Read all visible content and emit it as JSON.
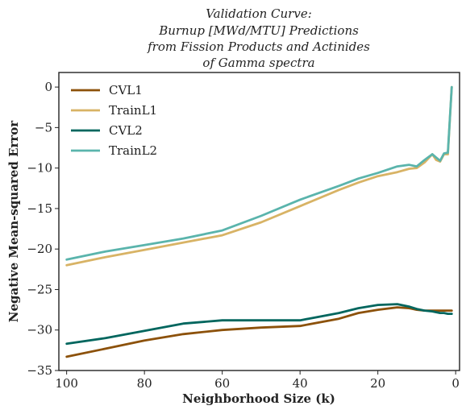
{
  "chart_data": {
    "type": "line",
    "title_lines": [
      "Validation Curve:",
      "Burnup [MWd/MTU] Predictions",
      "from Fission Products and Actinides",
      "of Gamma spectra"
    ],
    "xlabel": "Neighborhood Size (k)",
    "ylabel": "Negative Mean-squared Error",
    "xlim": [
      102,
      -1
    ],
    "ylim": [
      -35,
      1.8
    ],
    "x_inverted": true,
    "xticks": [
      100,
      80,
      60,
      40,
      20,
      0
    ],
    "yticks": [
      0,
      -5,
      -10,
      -15,
      -20,
      -25,
      -30,
      -35
    ],
    "xtick_labels": [
      "100",
      "80",
      "60",
      "40",
      "20",
      "0"
    ],
    "ytick_labels": [
      "0",
      "−5",
      "−10",
      "−15",
      "−20",
      "−25",
      "−30",
      "−35"
    ],
    "grid": false,
    "legend_position": "top-left",
    "x": [
      100,
      90,
      80,
      70,
      60,
      50,
      40,
      30,
      25,
      20,
      15,
      12,
      10,
      8,
      6,
      5,
      4,
      3,
      2,
      1
    ],
    "series": [
      {
        "name": "CVL1",
        "color": "#8c510a",
        "values": [
          -33.3,
          -32.3,
          -31.3,
          -30.5,
          -30.0,
          -29.7,
          -29.5,
          -28.6,
          -27.9,
          -27.5,
          -27.2,
          -27.3,
          -27.5,
          -27.6,
          -27.6,
          -27.6,
          -27.6,
          -27.6,
          -27.6,
          -27.6
        ]
      },
      {
        "name": "TrainL1",
        "color": "#d8b365",
        "values": [
          -22.0,
          -21.0,
          -20.1,
          -19.2,
          -18.3,
          -16.7,
          -14.7,
          -12.7,
          -11.8,
          -11.0,
          -10.5,
          -10.1,
          -10.0,
          -9.3,
          -8.3,
          -9.0,
          -9.2,
          -8.3,
          -8.3,
          0.0
        ]
      },
      {
        "name": "CVL2",
        "color": "#01665e",
        "values": [
          -31.7,
          -31.0,
          -30.1,
          -29.2,
          -28.8,
          -28.8,
          -28.8,
          -27.9,
          -27.3,
          -26.9,
          -26.8,
          -27.1,
          -27.4,
          -27.6,
          -27.7,
          -27.8,
          -27.9,
          -27.9,
          -28.0,
          -28.0
        ]
      },
      {
        "name": "TrainL2",
        "color": "#5ab4ac",
        "values": [
          -21.3,
          -20.3,
          -19.5,
          -18.7,
          -17.7,
          -15.9,
          -13.9,
          -12.2,
          -11.3,
          -10.6,
          -9.8,
          -9.6,
          -9.8,
          -9.0,
          -8.3,
          -8.7,
          -9.1,
          -8.2,
          -8.1,
          0.0
        ]
      }
    ]
  }
}
